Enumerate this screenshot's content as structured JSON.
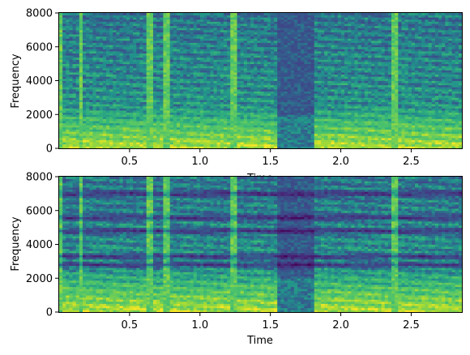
{
  "chart_data": [
    {
      "type": "heatmap",
      "title": "",
      "xlabel": "Time",
      "ylabel": "Frequency",
      "xlim": [
        0.0,
        2.86
      ],
      "ylim": [
        0,
        8000
      ],
      "x_ticks": [
        0.5,
        1.0,
        1.5,
        2.0,
        2.5
      ],
      "x_tick_labels": [
        "0.5",
        "1.0",
        "1.5",
        "2.0",
        "2.5"
      ],
      "y_ticks": [
        0,
        2000,
        4000,
        6000,
        8000
      ],
      "y_tick_labels": [
        "0",
        "2000",
        "4000",
        "6000",
        "8000"
      ],
      "colormap": "viridis",
      "grid": false,
      "description_values": {
        "silence_or_noise_segments_s": [
          [
            0.0,
            0.02
          ],
          [
            0.15,
            0.17
          ],
          [
            0.62,
            0.66
          ],
          [
            0.74,
            0.78
          ],
          [
            1.22,
            1.26
          ],
          [
            1.56,
            1.82
          ],
          [
            2.36,
            2.4
          ]
        ],
        "low_frequency_energy_band_hz": [
          0,
          2000
        ]
      }
    },
    {
      "type": "heatmap",
      "title": "",
      "xlabel": "Time",
      "ylabel": "Frequency",
      "xlim": [
        0.0,
        2.86
      ],
      "ylim": [
        0,
        8000
      ],
      "x_ticks": [
        0.5,
        1.0,
        1.5,
        2.0,
        2.5
      ],
      "x_tick_labels": [
        "0.5",
        "1.0",
        "1.5",
        "2.0",
        "2.5"
      ],
      "y_ticks": [
        0,
        2000,
        4000,
        6000,
        8000
      ],
      "y_tick_labels": [
        "0",
        "2000",
        "4000",
        "6000",
        "8000"
      ],
      "colormap": "viridis",
      "grid": false,
      "description_values": {
        "dark_horizontal_bands_hz": [
          7000,
          5600,
          4800,
          3300,
          2800
        ],
        "silence_or_noise_segments_s": [
          [
            0.0,
            0.02
          ],
          [
            0.15,
            0.17
          ],
          [
            0.62,
            0.66
          ],
          [
            0.74,
            0.78
          ],
          [
            1.22,
            1.26
          ],
          [
            1.56,
            1.82
          ],
          [
            2.36,
            2.4
          ]
        ]
      }
    }
  ]
}
